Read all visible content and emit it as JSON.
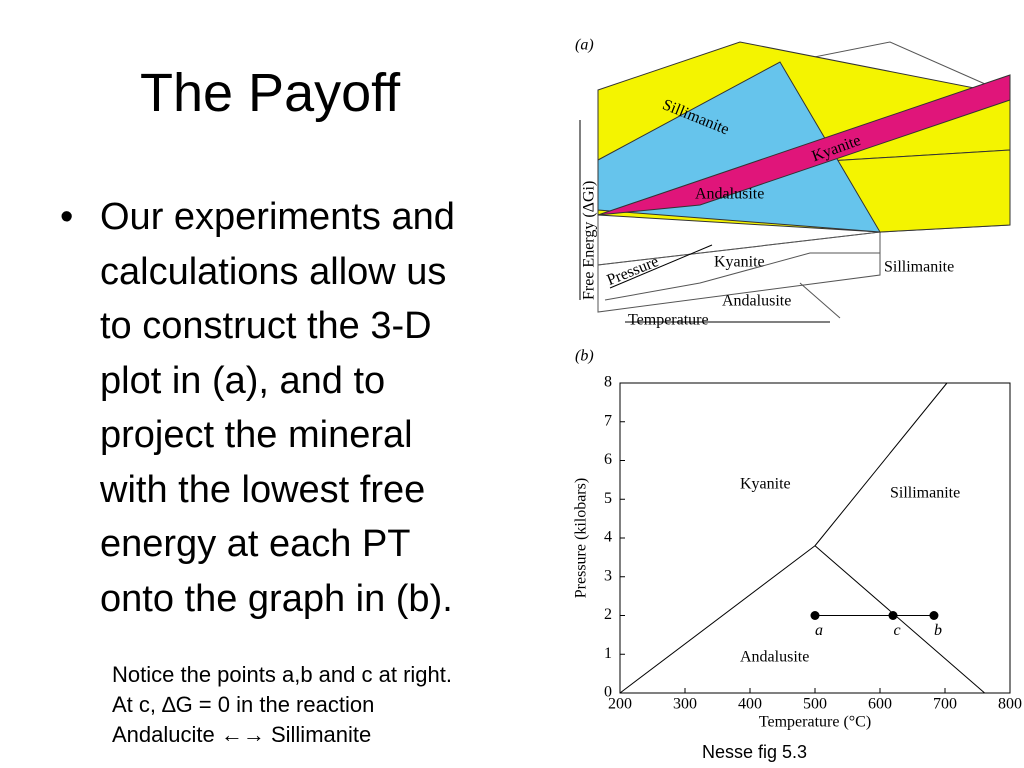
{
  "title": "The Payoff",
  "bullet": {
    "lines": [
      "Our experiments and",
      "calculations allow us",
      "to construct the 3-D",
      "plot in (a), and to",
      "project the mineral",
      "with the lowest free",
      "energy at each PT",
      "onto the graph in (b)."
    ]
  },
  "note": {
    "lines": [
      "Notice the points a,b and c at right.",
      "At c, ∆G = 0 in the reaction",
      "Andalucite ←→ Sillimanite"
    ]
  },
  "caption": "Nesse fig 5.3",
  "figure_a": {
    "label": "(a)",
    "y_axis_label": "Free Energy (ΔGi)",
    "surface_labels": [
      "Sillimanite",
      "Kyanite",
      "Andalusite"
    ],
    "pressure_label": "Pressure",
    "temperature_label": "Temperature",
    "base_labels": [
      "Kyanite",
      "Sillimanite",
      "Andalusite"
    ]
  },
  "chart_data": {
    "type": "line",
    "label": "(b)",
    "x_label": "Temperature (°C)",
    "y_label": "Pressure (kilobars)",
    "xlim": [
      200,
      800
    ],
    "ylim": [
      0,
      8
    ],
    "xticks": [
      200,
      300,
      400,
      500,
      600,
      700,
      800
    ],
    "yticks": [
      0,
      1,
      2,
      3,
      4,
      5,
      6,
      7,
      8
    ],
    "field_labels": [
      "Kyanite",
      "Sillimanite",
      "Andalusite"
    ],
    "series": [
      {
        "color": "#000000",
        "x": [
          200,
          500
        ],
        "values": [
          0,
          3.8
        ]
      },
      {
        "color": "#000000",
        "x": [
          500,
          703
        ],
        "values": [
          3.8,
          8
        ]
      },
      {
        "color": "#000000",
        "x": [
          500,
          761
        ],
        "values": [
          3.8,
          0
        ]
      }
    ],
    "points": {
      "labels": [
        "a",
        "c",
        "b"
      ],
      "x": [
        500,
        620,
        683
      ],
      "values": [
        2,
        2,
        2
      ]
    }
  }
}
